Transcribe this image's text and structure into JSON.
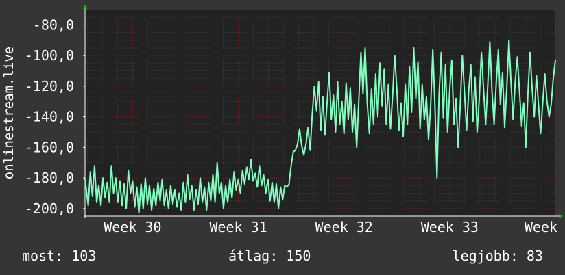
{
  "colors": {
    "background": "#353535",
    "plot_background": "#222222",
    "grid_major": "#6b2a2a",
    "grid_minor": "#3a3a3a",
    "line": "#80ffc0",
    "text": "#ffffff",
    "arrow": "#00cc00"
  },
  "stats": {
    "now_label": "most:",
    "now_value": "103",
    "avg_label": "átlag:",
    "avg_value": "150",
    "max_label": "legjobb:",
    "max_value": "83"
  },
  "chart_data": {
    "type": "line",
    "title": "",
    "ylabel": "onlinestream.live",
    "xlabel": "",
    "ylim": [
      -205,
      -70
    ],
    "yticks": [
      -200,
      -180,
      -160,
      -140,
      -120,
      -100,
      -80
    ],
    "ytick_labels": [
      "-200,0",
      "-180,0",
      "-160,0",
      "-140,0",
      "-120,0",
      "-100,0",
      "-80,0"
    ],
    "xlim": [
      0,
      4.45
    ],
    "xticks": [
      0.45,
      1.45,
      2.45,
      3.45,
      4.45
    ],
    "xtick_labels": [
      "Week 30",
      "Week 31",
      "Week 32",
      "Week 33",
      "Week"
    ],
    "grid": true,
    "series": [
      {
        "values": [
          [
            0.0,
            -181
          ],
          [
            0.03,
            -198
          ],
          [
            0.05,
            -176
          ],
          [
            0.07,
            -192
          ],
          [
            0.09,
            -172
          ],
          [
            0.11,
            -196
          ],
          [
            0.13,
            -185
          ],
          [
            0.15,
            -198
          ],
          [
            0.17,
            -180
          ],
          [
            0.19,
            -193
          ],
          [
            0.21,
            -183
          ],
          [
            0.23,
            -196
          ],
          [
            0.25,
            -172
          ],
          [
            0.27,
            -190
          ],
          [
            0.29,
            -180
          ],
          [
            0.31,
            -196
          ],
          [
            0.33,
            -182
          ],
          [
            0.35,
            -198
          ],
          [
            0.37,
            -184
          ],
          [
            0.39,
            -200
          ],
          [
            0.41,
            -175
          ],
          [
            0.43,
            -190
          ],
          [
            0.45,
            -182
          ],
          [
            0.47,
            -199
          ],
          [
            0.49,
            -186
          ],
          [
            0.51,
            -203
          ],
          [
            0.53,
            -184
          ],
          [
            0.55,
            -200
          ],
          [
            0.57,
            -180
          ],
          [
            0.59,
            -197
          ],
          [
            0.61,
            -185
          ],
          [
            0.63,
            -201
          ],
          [
            0.65,
            -187
          ],
          [
            0.67,
            -198
          ],
          [
            0.69,
            -183
          ],
          [
            0.71,
            -195
          ],
          [
            0.73,
            -181
          ],
          [
            0.75,
            -198
          ],
          [
            0.77,
            -188
          ],
          [
            0.79,
            -200
          ],
          [
            0.81,
            -185
          ],
          [
            0.83,
            -197
          ],
          [
            0.85,
            -188
          ],
          [
            0.87,
            -199
          ],
          [
            0.89,
            -190
          ],
          [
            0.91,
            -201
          ],
          [
            0.93,
            -183
          ],
          [
            0.95,
            -196
          ],
          [
            0.97,
            -178
          ],
          [
            0.99,
            -194
          ],
          [
            1.01,
            -185
          ],
          [
            1.03,
            -201
          ],
          [
            1.05,
            -188
          ],
          [
            1.07,
            -197
          ],
          [
            1.09,
            -180
          ],
          [
            1.11,
            -196
          ],
          [
            1.13,
            -186
          ],
          [
            1.15,
            -201
          ],
          [
            1.17,
            -183
          ],
          [
            1.19,
            -195
          ],
          [
            1.21,
            -178
          ],
          [
            1.23,
            -196
          ],
          [
            1.25,
            -170
          ],
          [
            1.27,
            -190
          ],
          [
            1.29,
            -183
          ],
          [
            1.31,
            -200
          ],
          [
            1.33,
            -185
          ],
          [
            1.35,
            -196
          ],
          [
            1.37,
            -181
          ],
          [
            1.39,
            -193
          ],
          [
            1.41,
            -176
          ],
          [
            1.43,
            -188
          ],
          [
            1.45,
            -181
          ],
          [
            1.47,
            -190
          ],
          [
            1.49,
            -175
          ],
          [
            1.51,
            -184
          ],
          [
            1.53,
            -173
          ],
          [
            1.55,
            -181
          ],
          [
            1.57,
            -168
          ],
          [
            1.59,
            -182
          ],
          [
            1.61,
            -177
          ],
          [
            1.63,
            -186
          ],
          [
            1.65,
            -172
          ],
          [
            1.67,
            -185
          ],
          [
            1.69,
            -178
          ],
          [
            1.71,
            -190
          ],
          [
            1.73,
            -181
          ],
          [
            1.75,
            -195
          ],
          [
            1.77,
            -183
          ],
          [
            1.79,
            -196
          ],
          [
            1.81,
            -184
          ],
          [
            1.83,
            -200
          ],
          [
            1.85,
            -186
          ],
          [
            1.87,
            -194
          ],
          [
            1.89,
            -185
          ],
          [
            1.91,
            -186
          ],
          [
            1.93,
            -184
          ],
          [
            1.95,
            -172
          ],
          [
            1.97,
            -163
          ],
          [
            1.99,
            -162
          ],
          [
            2.01,
            -158
          ],
          [
            2.03,
            -148
          ],
          [
            2.05,
            -159
          ],
          [
            2.07,
            -165
          ],
          [
            2.09,
            -158
          ],
          [
            2.11,
            -147
          ],
          [
            2.13,
            -162
          ],
          [
            2.15,
            -138
          ],
          [
            2.17,
            -120
          ],
          [
            2.19,
            -136
          ],
          [
            2.21,
            -117
          ],
          [
            2.23,
            -149
          ],
          [
            2.25,
            -127
          ],
          [
            2.27,
            -152
          ],
          [
            2.29,
            -131
          ],
          [
            2.31,
            -111
          ],
          [
            2.33,
            -142
          ],
          [
            2.35,
            -126
          ],
          [
            2.37,
            -150
          ],
          [
            2.39,
            -117
          ],
          [
            2.41,
            -145
          ],
          [
            2.43,
            -130
          ],
          [
            2.45,
            -151
          ],
          [
            2.47,
            -118
          ],
          [
            2.49,
            -142
          ],
          [
            2.51,
            -121
          ],
          [
            2.53,
            -150
          ],
          [
            2.55,
            -132
          ],
          [
            2.57,
            -160
          ],
          [
            2.59,
            -129
          ],
          [
            2.61,
            -98
          ],
          [
            2.63,
            -125
          ],
          [
            2.65,
            -95
          ],
          [
            2.67,
            -131
          ],
          [
            2.69,
            -151
          ],
          [
            2.71,
            -122
          ],
          [
            2.73,
            -145
          ],
          [
            2.75,
            -112
          ],
          [
            2.77,
            -140
          ],
          [
            2.79,
            -105
          ],
          [
            2.81,
            -133
          ],
          [
            2.83,
            -109
          ],
          [
            2.85,
            -145
          ],
          [
            2.87,
            -119
          ],
          [
            2.89,
            -148
          ],
          [
            2.91,
            -126
          ],
          [
            2.93,
            -100
          ],
          [
            2.95,
            -122
          ],
          [
            2.97,
            -149
          ],
          [
            2.99,
            -131
          ],
          [
            3.01,
            -153
          ],
          [
            3.03,
            -119
          ],
          [
            3.05,
            -145
          ],
          [
            3.07,
            -107
          ],
          [
            3.09,
            -137
          ],
          [
            3.11,
            -95
          ],
          [
            3.13,
            -128
          ],
          [
            3.15,
            -104
          ],
          [
            3.17,
            -148
          ],
          [
            3.19,
            -119
          ],
          [
            3.21,
            -142
          ],
          [
            3.23,
            -127
          ],
          [
            3.25,
            -155
          ],
          [
            3.27,
            -133
          ],
          [
            3.29,
            -96
          ],
          [
            3.31,
            -132
          ],
          [
            3.33,
            -180
          ],
          [
            3.35,
            -125
          ],
          [
            3.37,
            -98
          ],
          [
            3.39,
            -141
          ],
          [
            3.41,
            -106
          ],
          [
            3.43,
            -150
          ],
          [
            3.45,
            -123
          ],
          [
            3.47,
            -103
          ],
          [
            3.49,
            -145
          ],
          [
            3.51,
            -128
          ],
          [
            3.53,
            -160
          ],
          [
            3.55,
            -132
          ],
          [
            3.57,
            -100
          ],
          [
            3.59,
            -124
          ],
          [
            3.61,
            -149
          ],
          [
            3.63,
            -123
          ],
          [
            3.65,
            -106
          ],
          [
            3.67,
            -143
          ],
          [
            3.69,
            -114
          ],
          [
            3.71,
            -150
          ],
          [
            3.73,
            -128
          ],
          [
            3.75,
            -98
          ],
          [
            3.77,
            -122
          ],
          [
            3.79,
            -145
          ],
          [
            3.81,
            -120
          ],
          [
            3.83,
            -91
          ],
          [
            3.85,
            -123
          ],
          [
            3.87,
            -145
          ],
          [
            3.89,
            -118
          ],
          [
            3.91,
            -96
          ],
          [
            3.93,
            -132
          ],
          [
            3.95,
            -111
          ],
          [
            3.97,
            -147
          ],
          [
            3.99,
            -121
          ],
          [
            4.01,
            -90
          ],
          [
            4.03,
            -118
          ],
          [
            4.05,
            -142
          ],
          [
            4.07,
            -117
          ],
          [
            4.09,
            -101
          ],
          [
            4.11,
            -123
          ],
          [
            4.13,
            -146
          ],
          [
            4.15,
            -131
          ],
          [
            4.17,
            -160
          ],
          [
            4.19,
            -125
          ],
          [
            4.21,
            -98
          ],
          [
            4.23,
            -122
          ],
          [
            4.25,
            -140
          ],
          [
            4.27,
            -113
          ],
          [
            4.29,
            -132
          ],
          [
            4.31,
            -151
          ],
          [
            4.33,
            -131
          ],
          [
            4.35,
            -112
          ],
          [
            4.37,
            -130
          ],
          [
            4.39,
            -140
          ],
          [
            4.41,
            -132
          ],
          [
            4.43,
            -115
          ],
          [
            4.45,
            -103
          ]
        ]
      }
    ]
  }
}
